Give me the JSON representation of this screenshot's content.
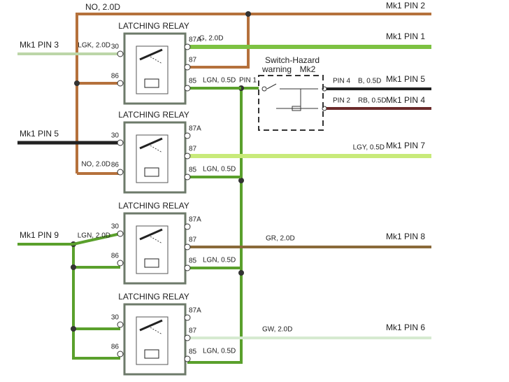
{
  "top": {
    "wire": "NO, 2.0D",
    "pin": "Mk1 PIN 2"
  },
  "relays": [
    {
      "title": "LATCHING RELAY",
      "pins": [
        "30",
        "86",
        "87A",
        "87",
        "85"
      ],
      "input_pin": "Mk1 PIN 3",
      "input_wire": "LGK, 2.0D",
      "output_wire": "G, 2.0D",
      "output_pin": "Mk1 PIN 1",
      "coil_wire": "LGN, 0.5D",
      "coil_pin": "PIN 1"
    },
    {
      "title": "LATCHING RELAY",
      "pins": [
        "30",
        "86",
        "87A",
        "87",
        "85"
      ],
      "input_pin": "Mk1 PIN 5",
      "feed_wire": "NO, 2.0D",
      "output_wire": "LGY, 0.5D",
      "output_pin": "Mk1 PIN 7",
      "coil_wire": "LGN, 0.5D"
    },
    {
      "title": "LATCHING RELAY",
      "pins": [
        "30",
        "86",
        "87A",
        "87",
        "85"
      ],
      "input_pin": "Mk1 PIN 9",
      "input_wire": "LGN, 2.0D",
      "output_wire": "GR, 2.0D",
      "output_pin": "Mk1 PIN 8",
      "coil_wire": "LGN, 0.5D"
    },
    {
      "title": "LATCHING RELAY",
      "pins": [
        "30",
        "86",
        "87A",
        "87",
        "85"
      ],
      "output_wire": "GW, 2.0D",
      "output_pin": "Mk1 PIN 6",
      "coil_wire": "LGN, 0.5D"
    }
  ],
  "switch": {
    "title": "Switch-Hazard",
    "subtitle": "warning",
    "code": "Mk2",
    "outputs": [
      {
        "pin": "PIN 4",
        "wire": "B, 0.5D",
        "dest": "Mk1 PIN 5"
      },
      {
        "pin": "PIN 2",
        "wire": "RB, 0.5D",
        "dest": "Mk1 PIN 4"
      }
    ]
  }
}
